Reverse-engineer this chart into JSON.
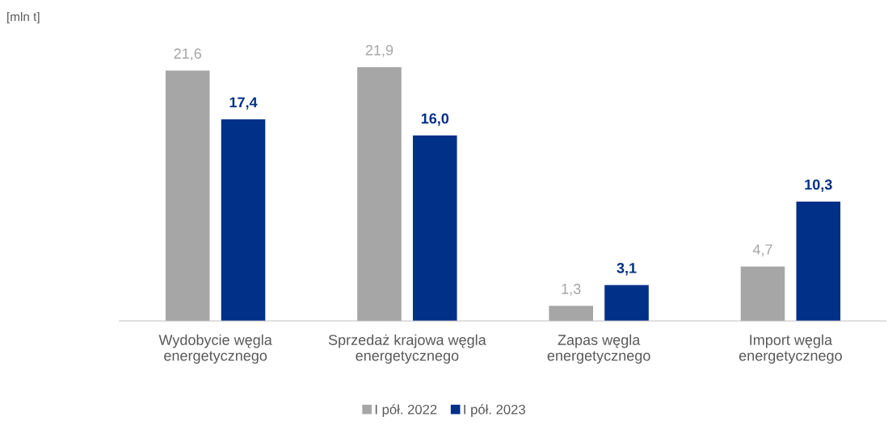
{
  "chart_data": {
    "type": "bar",
    "annotations": [
      "[mln t]"
    ],
    "categories": [
      "Wydobycie węgla\nenergetycznego",
      "Sprzedaż krajowa węgla\nenergetycznego",
      "Zapas węgla\nenergetycznego",
      "Import węgla\nenergetycznego"
    ],
    "series": [
      {
        "name": "I pół. 2022",
        "color": "#a6a6a6",
        "values": [
          21.6,
          21.9,
          1.3,
          4.7
        ],
        "value_labels": [
          "21,6",
          "21,9",
          "1,3",
          "4,7"
        ]
      },
      {
        "name": "I pół. 2023",
        "color": "#003087",
        "values": [
          17.4,
          16.0,
          3.1,
          10.3
        ],
        "value_labels": [
          "17,4",
          "16,0",
          "3,1",
          "10,3"
        ]
      }
    ],
    "legend": "bottom",
    "grid": false,
    "tick_labels": "x"
  }
}
